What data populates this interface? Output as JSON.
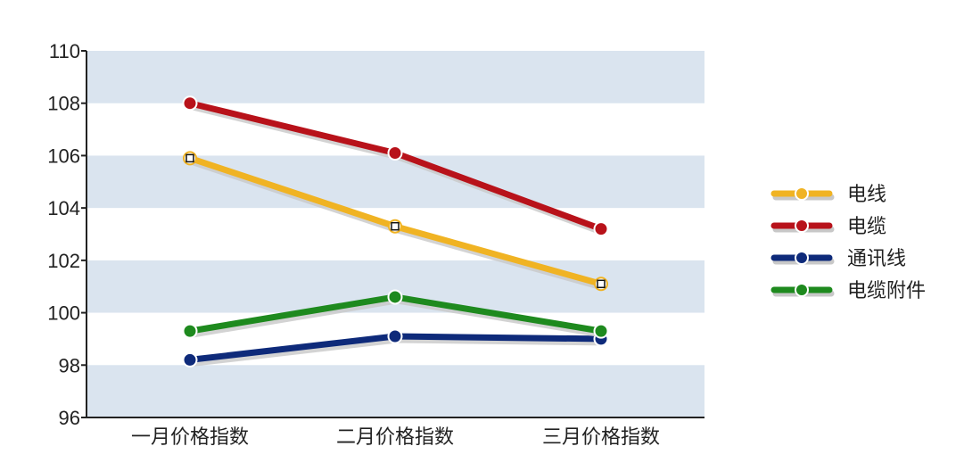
{
  "chart_data": {
    "type": "line",
    "categories": [
      "一月价格指数",
      "二月价格指数",
      "三月价格指数"
    ],
    "ylim": [
      96,
      110
    ],
    "yticks": [
      96,
      98,
      100,
      102,
      104,
      106,
      108,
      110
    ],
    "grid": "alternating horizontal bands",
    "legend_position": "right",
    "series": [
      {
        "name": "电线",
        "values": [
          105.9,
          103.3,
          101.1
        ],
        "color": "#F0B323",
        "marker": "square"
      },
      {
        "name": "电缆",
        "values": [
          108.0,
          106.1,
          103.2
        ],
        "color": "#B8121A",
        "marker": "circle"
      },
      {
        "name": "通讯线",
        "values": [
          98.2,
          99.1,
          99.0
        ],
        "color": "#0E2A7A",
        "marker": "circle"
      },
      {
        "name": "电缆附件",
        "values": [
          99.3,
          100.6,
          99.3
        ],
        "color": "#1E8A1E",
        "marker": "circle"
      }
    ]
  },
  "colors": {
    "band": "#DAE4EF",
    "axis": "#222222",
    "shadow": "#C8C8C8"
  }
}
